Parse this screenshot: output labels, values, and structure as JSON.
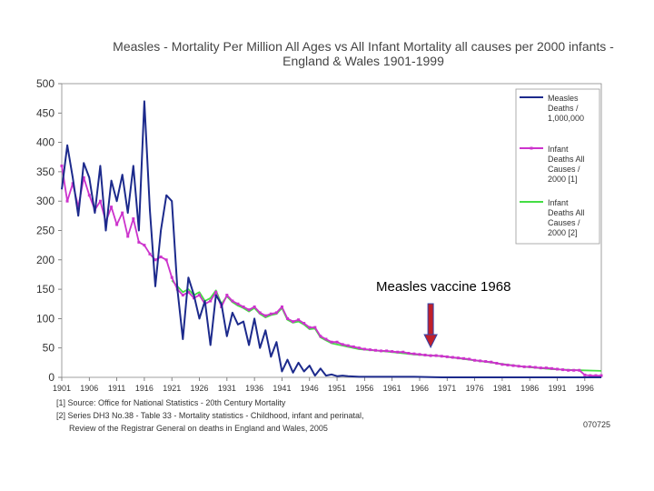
{
  "chart_data": {
    "type": "line",
    "title": "Measles - Mortality Per Million All Ages vs All Infant Mortality all causes per 2000 infants -",
    "subtitle": "England & Wales 1901-1999",
    "xlabel": "",
    "ylabel": "",
    "xlim": [
      1901,
      1999
    ],
    "ylim": [
      0,
      500
    ],
    "y_ticks": [
      "0",
      "50",
      "100",
      "150",
      "200",
      "250",
      "300",
      "350",
      "400",
      "450",
      "500"
    ],
    "x_ticks": [
      "1901",
      "1906",
      "1911",
      "1916",
      "1921",
      "1926",
      "1931",
      "1936",
      "1941",
      "1946",
      "1951",
      "1956",
      "1961",
      "1966",
      "1971",
      "1976",
      "1981",
      "1986",
      "1991",
      "1996"
    ],
    "grid": false,
    "legend_position": "right",
    "series": [
      {
        "name": "Measles Deaths / 1,000,000",
        "legend_lines": [
          "Measles",
          "Deaths /",
          "1,000,000"
        ],
        "color": "#1c2a8c",
        "marker": "none",
        "points": [
          [
            1901,
            320
          ],
          [
            1902,
            395
          ],
          [
            1903,
            340
          ],
          [
            1904,
            275
          ],
          [
            1905,
            365
          ],
          [
            1906,
            340
          ],
          [
            1907,
            280
          ],
          [
            1908,
            360
          ],
          [
            1909,
            250
          ],
          [
            1910,
            335
          ],
          [
            1911,
            300
          ],
          [
            1912,
            345
          ],
          [
            1913,
            280
          ],
          [
            1914,
            360
          ],
          [
            1915,
            250
          ],
          [
            1916,
            470
          ],
          [
            1917,
            285
          ],
          [
            1918,
            155
          ],
          [
            1919,
            250
          ],
          [
            1920,
            310
          ],
          [
            1921,
            300
          ],
          [
            1922,
            150
          ],
          [
            1923,
            65
          ],
          [
            1924,
            170
          ],
          [
            1925,
            140
          ],
          [
            1926,
            100
          ],
          [
            1927,
            130
          ],
          [
            1928,
            55
          ],
          [
            1929,
            140
          ],
          [
            1930,
            125
          ],
          [
            1931,
            70
          ],
          [
            1932,
            110
          ],
          [
            1933,
            90
          ],
          [
            1934,
            95
          ],
          [
            1935,
            55
          ],
          [
            1936,
            100
          ],
          [
            1937,
            50
          ],
          [
            1938,
            80
          ],
          [
            1939,
            35
          ],
          [
            1940,
            60
          ],
          [
            1941,
            10
          ],
          [
            1942,
            30
          ],
          [
            1943,
            8
          ],
          [
            1944,
            25
          ],
          [
            1945,
            10
          ],
          [
            1946,
            20
          ],
          [
            1947,
            3
          ],
          [
            1948,
            15
          ],
          [
            1949,
            3
          ],
          [
            1950,
            5
          ],
          [
            1951,
            2
          ],
          [
            1952,
            3
          ],
          [
            1953,
            2
          ],
          [
            1955,
            1
          ],
          [
            1960,
            1
          ],
          [
            1965,
            1
          ],
          [
            1970,
            0
          ],
          [
            1975,
            0
          ],
          [
            1980,
            0
          ],
          [
            1985,
            0
          ],
          [
            1990,
            0
          ],
          [
            1995,
            0
          ],
          [
            1999,
            0
          ]
        ]
      },
      {
        "name": "Infant Deaths All Causes / 2000 [1]",
        "legend_lines": [
          "Infant",
          "Deaths All",
          "Causes /",
          "2000 [1]"
        ],
        "color": "#cc33cc",
        "marker": "square",
        "points": [
          [
            1901,
            360
          ],
          [
            1902,
            300
          ],
          [
            1903,
            330
          ],
          [
            1904,
            290
          ],
          [
            1905,
            340
          ],
          [
            1906,
            310
          ],
          [
            1907,
            285
          ],
          [
            1908,
            300
          ],
          [
            1909,
            265
          ],
          [
            1910,
            290
          ],
          [
            1911,
            260
          ],
          [
            1912,
            280
          ],
          [
            1913,
            240
          ],
          [
            1914,
            270
          ],
          [
            1915,
            230
          ],
          [
            1916,
            225
          ],
          [
            1917,
            210
          ],
          [
            1918,
            200
          ],
          [
            1919,
            205
          ],
          [
            1920,
            200
          ],
          [
            1921,
            170
          ],
          [
            1922,
            150
          ],
          [
            1923,
            140
          ],
          [
            1924,
            145
          ],
          [
            1925,
            135
          ],
          [
            1926,
            140
          ],
          [
            1927,
            125
          ],
          [
            1928,
            130
          ],
          [
            1929,
            145
          ],
          [
            1930,
            120
          ],
          [
            1931,
            140
          ],
          [
            1932,
            130
          ],
          [
            1933,
            125
          ],
          [
            1934,
            120
          ],
          [
            1935,
            115
          ],
          [
            1936,
            120
          ],
          [
            1937,
            110
          ],
          [
            1938,
            105
          ],
          [
            1939,
            108
          ],
          [
            1940,
            110
          ],
          [
            1941,
            120
          ],
          [
            1942,
            100
          ],
          [
            1943,
            95
          ],
          [
            1944,
            98
          ],
          [
            1945,
            92
          ],
          [
            1946,
            85
          ],
          [
            1947,
            85
          ],
          [
            1948,
            70
          ],
          [
            1949,
            65
          ],
          [
            1950,
            60
          ],
          [
            1951,
            60
          ],
          [
            1952,
            56
          ],
          [
            1953,
            54
          ],
          [
            1954,
            52
          ],
          [
            1955,
            50
          ],
          [
            1956,
            48
          ],
          [
            1957,
            47
          ],
          [
            1958,
            46
          ],
          [
            1959,
            45
          ],
          [
            1960,
            45
          ],
          [
            1961,
            44
          ],
          [
            1962,
            43
          ],
          [
            1963,
            43
          ],
          [
            1964,
            41
          ],
          [
            1965,
            40
          ],
          [
            1966,
            39
          ],
          [
            1967,
            38
          ],
          [
            1968,
            37
          ],
          [
            1969,
            37
          ],
          [
            1970,
            36
          ],
          [
            1971,
            35
          ],
          [
            1972,
            34
          ],
          [
            1973,
            33
          ],
          [
            1974,
            32
          ],
          [
            1975,
            31
          ],
          [
            1976,
            29
          ],
          [
            1977,
            28
          ],
          [
            1978,
            27
          ],
          [
            1979,
            26
          ],
          [
            1980,
            24
          ],
          [
            1981,
            22
          ],
          [
            1982,
            21
          ],
          [
            1983,
            20
          ],
          [
            1984,
            19
          ],
          [
            1985,
            18
          ],
          [
            1986,
            18
          ],
          [
            1987,
            17
          ],
          [
            1988,
            16
          ],
          [
            1989,
            16
          ],
          [
            1990,
            15
          ],
          [
            1991,
            14
          ],
          [
            1992,
            13
          ],
          [
            1993,
            12
          ],
          [
            1994,
            12
          ],
          [
            1995,
            12
          ],
          [
            1996,
            4
          ],
          [
            1997,
            3
          ],
          [
            1998,
            3
          ],
          [
            1999,
            3
          ]
        ]
      },
      {
        "name": "Infant Deaths All Causes / 2000 [2]",
        "legend_lines": [
          "Infant",
          "Deaths All",
          "Causes /",
          "2000 [2]"
        ],
        "color": "#44dd44",
        "marker": "none",
        "points": [
          [
            1921,
            165
          ],
          [
            1922,
            155
          ],
          [
            1923,
            145
          ],
          [
            1924,
            150
          ],
          [
            1925,
            140
          ],
          [
            1926,
            145
          ],
          [
            1927,
            130
          ],
          [
            1928,
            135
          ],
          [
            1929,
            148
          ],
          [
            1930,
            125
          ],
          [
            1931,
            138
          ],
          [
            1932,
            128
          ],
          [
            1933,
            122
          ],
          [
            1934,
            118
          ],
          [
            1935,
            112
          ],
          [
            1936,
            118
          ],
          [
            1937,
            108
          ],
          [
            1938,
            102
          ],
          [
            1939,
            106
          ],
          [
            1940,
            108
          ],
          [
            1941,
            118
          ],
          [
            1942,
            98
          ],
          [
            1943,
            93
          ],
          [
            1944,
            95
          ],
          [
            1945,
            90
          ],
          [
            1946,
            82
          ],
          [
            1947,
            83
          ],
          [
            1948,
            68
          ],
          [
            1949,
            63
          ],
          [
            1950,
            58
          ],
          [
            1955,
            48
          ],
          [
            1960,
            44
          ],
          [
            1965,
            39
          ],
          [
            1970,
            36
          ],
          [
            1975,
            30
          ],
          [
            1980,
            24
          ],
          [
            1985,
            18
          ],
          [
            1990,
            14
          ],
          [
            1995,
            12
          ],
          [
            1999,
            11
          ]
        ]
      }
    ],
    "annotations": [
      {
        "text": "Measles vaccine 1968",
        "arrow_x": 1968,
        "arrow_color": "#c0202a"
      }
    ]
  },
  "footnotes": [
    "[1] Source: Office for National Statistics - 20th Century Mortality",
    "[2] Series DH3 No.38 - Table 33 - Mortality statistics - Childhood, infant and perinatal,",
    "Review of the Registrar General on deaths in England and Wales, 2005"
  ],
  "code": "070725"
}
